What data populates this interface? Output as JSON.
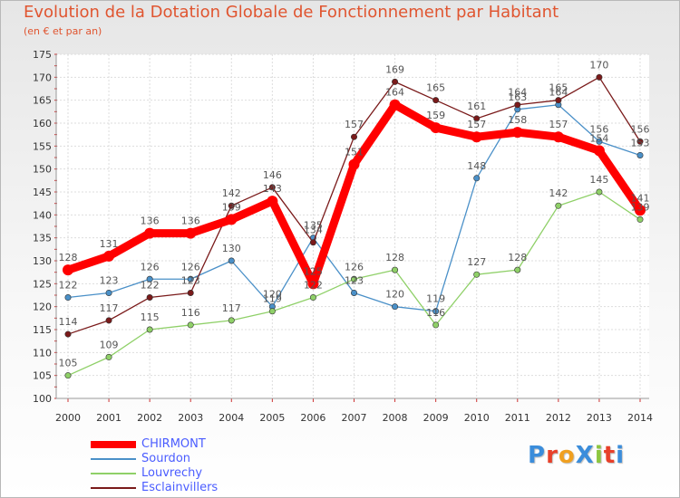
{
  "title": "Evolution de la Dotation Globale de Fonctionnement par Habitant",
  "subtitle": "(en € et par an)",
  "logo": "ProXiti",
  "colors": {
    "title": "#e05530",
    "legend_text": "#4a5cff",
    "logo": [
      "#3b8ddb",
      "#e8402a",
      "#f0a020",
      "#3b8ddb",
      "#8cc63f",
      "#e8402a",
      "#3b8ddb"
    ]
  },
  "chart_data": {
    "type": "line",
    "x": [
      "2000",
      "2001",
      "2002",
      "2003",
      "2004",
      "2005",
      "2006",
      "2007",
      "2008",
      "2009",
      "2010",
      "2011",
      "2012",
      "2013",
      "2014"
    ],
    "ylim": [
      100,
      175
    ],
    "yticks": [
      100,
      105,
      110,
      115,
      120,
      125,
      130,
      135,
      140,
      145,
      150,
      155,
      160,
      165,
      170,
      175
    ],
    "grid": true,
    "legend_position": "bottom-left",
    "series": [
      {
        "name": "CHIRMONT",
        "color": "#ff0000",
        "values": [
          128,
          131,
          136,
          136,
          139,
          143,
          125,
          151,
          164,
          159,
          157,
          158,
          157,
          154,
          141
        ]
      },
      {
        "name": "Sourdon",
        "color": "#4a90c8",
        "values": [
          122,
          123,
          126,
          126,
          130,
          120,
          135,
          123,
          120,
          119,
          148,
          163,
          164,
          156,
          153
        ]
      },
      {
        "name": "Louvrechy",
        "color": "#8fd068",
        "values": [
          105,
          109,
          115,
          116,
          117,
          119,
          122,
          126,
          128,
          116,
          127,
          128,
          142,
          145,
          139
        ]
      },
      {
        "name": "Esclainvillers",
        "color": "#7a1a1a",
        "values": [
          114,
          117,
          122,
          123,
          142,
          146,
          134,
          157,
          169,
          165,
          161,
          164,
          165,
          170,
          156
        ]
      }
    ]
  }
}
